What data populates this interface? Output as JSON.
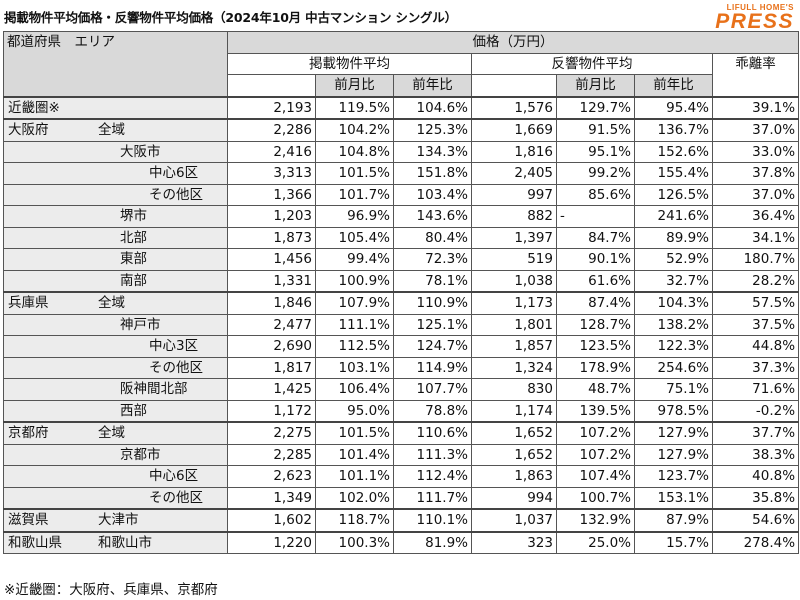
{
  "title": "掲載物件平均価格・反響物件平均価格（2024年10月 中古マンション シングル）",
  "brand": {
    "top": "LIFULL HOME'S",
    "main": "PRESS"
  },
  "header": {
    "region_col": "都道府県　エリア",
    "price_group": "価格（万円）",
    "listing_group": "掲載物件平均",
    "response_group": "反響物件平均",
    "mom": "前月比",
    "yoy": "前年比",
    "gap": "乖離率"
  },
  "rows": [
    {
      "pref": "近畿圏※",
      "area": "",
      "level": 0,
      "l_price": "2,193",
      "l_mom": "119.5%",
      "l_yoy": "104.6%",
      "r_price": "1,576",
      "r_mom": "129.7%",
      "r_yoy": "95.4%",
      "gap": "39.1%",
      "group_start": true
    },
    {
      "pref": "大阪府",
      "area": "全域",
      "level": 0,
      "l_price": "2,286",
      "l_mom": "104.2%",
      "l_yoy": "125.3%",
      "r_price": "1,669",
      "r_mom": "91.5%",
      "r_yoy": "136.7%",
      "gap": "37.0%",
      "group_start": true
    },
    {
      "pref": "",
      "area": "大阪市",
      "level": 1,
      "l_price": "2,416",
      "l_mom": "104.8%",
      "l_yoy": "134.3%",
      "r_price": "1,816",
      "r_mom": "95.1%",
      "r_yoy": "152.6%",
      "gap": "33.0%"
    },
    {
      "pref": "",
      "area": "中心6区",
      "level": 2,
      "l_price": "3,313",
      "l_mom": "101.5%",
      "l_yoy": "151.8%",
      "r_price": "2,405",
      "r_mom": "99.2%",
      "r_yoy": "155.4%",
      "gap": "37.8%"
    },
    {
      "pref": "",
      "area": "その他区",
      "level": 2,
      "l_price": "1,366",
      "l_mom": "101.7%",
      "l_yoy": "103.4%",
      "r_price": "997",
      "r_mom": "85.6%",
      "r_yoy": "126.5%",
      "gap": "37.0%"
    },
    {
      "pref": "",
      "area": "堺市",
      "level": 1,
      "l_price": "1,203",
      "l_mom": "96.9%",
      "l_yoy": "143.6%",
      "r_price": "882",
      "r_mom": "-",
      "r_yoy": "241.6%",
      "gap": "36.4%",
      "r_mom_left": true
    },
    {
      "pref": "",
      "area": "北部",
      "level": 1,
      "l_price": "1,873",
      "l_mom": "105.4%",
      "l_yoy": "80.4%",
      "r_price": "1,397",
      "r_mom": "84.7%",
      "r_yoy": "89.9%",
      "gap": "34.1%"
    },
    {
      "pref": "",
      "area": "東部",
      "level": 1,
      "l_price": "1,456",
      "l_mom": "99.4%",
      "l_yoy": "72.3%",
      "r_price": "519",
      "r_mom": "90.1%",
      "r_yoy": "52.9%",
      "gap": "180.7%"
    },
    {
      "pref": "",
      "area": "南部",
      "level": 1,
      "l_price": "1,331",
      "l_mom": "100.9%",
      "l_yoy": "78.1%",
      "r_price": "1,038",
      "r_mom": "61.6%",
      "r_yoy": "32.7%",
      "gap": "28.2%"
    },
    {
      "pref": "兵庫県",
      "area": "全域",
      "level": 0,
      "l_price": "1,846",
      "l_mom": "107.9%",
      "l_yoy": "110.9%",
      "r_price": "1,173",
      "r_mom": "87.4%",
      "r_yoy": "104.3%",
      "gap": "57.5%",
      "group_start": true
    },
    {
      "pref": "",
      "area": "神戸市",
      "level": 1,
      "l_price": "2,477",
      "l_mom": "111.1%",
      "l_yoy": "125.1%",
      "r_price": "1,801",
      "r_mom": "128.7%",
      "r_yoy": "138.2%",
      "gap": "37.5%"
    },
    {
      "pref": "",
      "area": "中心3区",
      "level": 2,
      "l_price": "2,690",
      "l_mom": "112.5%",
      "l_yoy": "124.7%",
      "r_price": "1,857",
      "r_mom": "123.5%",
      "r_yoy": "122.3%",
      "gap": "44.8%"
    },
    {
      "pref": "",
      "area": "その他区",
      "level": 2,
      "l_price": "1,817",
      "l_mom": "103.1%",
      "l_yoy": "114.9%",
      "r_price": "1,324",
      "r_mom": "178.9%",
      "r_yoy": "254.6%",
      "gap": "37.3%"
    },
    {
      "pref": "",
      "area": "阪神間北部",
      "level": 1,
      "l_price": "1,425",
      "l_mom": "106.4%",
      "l_yoy": "107.7%",
      "r_price": "830",
      "r_mom": "48.7%",
      "r_yoy": "75.1%",
      "gap": "71.6%"
    },
    {
      "pref": "",
      "area": "西部",
      "level": 1,
      "l_price": "1,172",
      "l_mom": "95.0%",
      "l_yoy": "78.8%",
      "r_price": "1,174",
      "r_mom": "139.5%",
      "r_yoy": "978.5%",
      "gap": "-0.2%"
    },
    {
      "pref": "京都府",
      "area": "全域",
      "level": 0,
      "l_price": "2,275",
      "l_mom": "101.5%",
      "l_yoy": "110.6%",
      "r_price": "1,652",
      "r_mom": "107.2%",
      "r_yoy": "127.9%",
      "gap": "37.7%",
      "group_start": true
    },
    {
      "pref": "",
      "area": "京都市",
      "level": 1,
      "l_price": "2,285",
      "l_mom": "101.4%",
      "l_yoy": "111.3%",
      "r_price": "1,652",
      "r_mom": "107.2%",
      "r_yoy": "127.9%",
      "gap": "38.3%"
    },
    {
      "pref": "",
      "area": "中心6区",
      "level": 2,
      "l_price": "2,623",
      "l_mom": "101.1%",
      "l_yoy": "112.4%",
      "r_price": "1,863",
      "r_mom": "107.4%",
      "r_yoy": "123.7%",
      "gap": "40.8%"
    },
    {
      "pref": "",
      "area": "その他区",
      "level": 2,
      "l_price": "1,349",
      "l_mom": "102.0%",
      "l_yoy": "111.7%",
      "r_price": "994",
      "r_mom": "100.7%",
      "r_yoy": "153.1%",
      "gap": "35.8%"
    },
    {
      "pref": "滋賀県",
      "area": "大津市",
      "level": 0,
      "l_price": "1,602",
      "l_mom": "118.7%",
      "l_yoy": "110.1%",
      "r_price": "1,037",
      "r_mom": "132.9%",
      "r_yoy": "87.9%",
      "gap": "54.6%",
      "group_start": true
    },
    {
      "pref": "和歌山県",
      "area": "和歌山市",
      "level": 0,
      "l_price": "1,220",
      "l_mom": "100.3%",
      "l_yoy": "81.9%",
      "r_price": "323",
      "r_mom": "25.0%",
      "r_yoy": "15.7%",
      "gap": "278.4%",
      "group_start": true
    }
  ],
  "note": "※近畿圏：大阪府、兵庫県、京都府",
  "colors": {
    "header_bg": "#d9d9d9",
    "label_bg": "#ececec",
    "brand": "#e8711a"
  }
}
